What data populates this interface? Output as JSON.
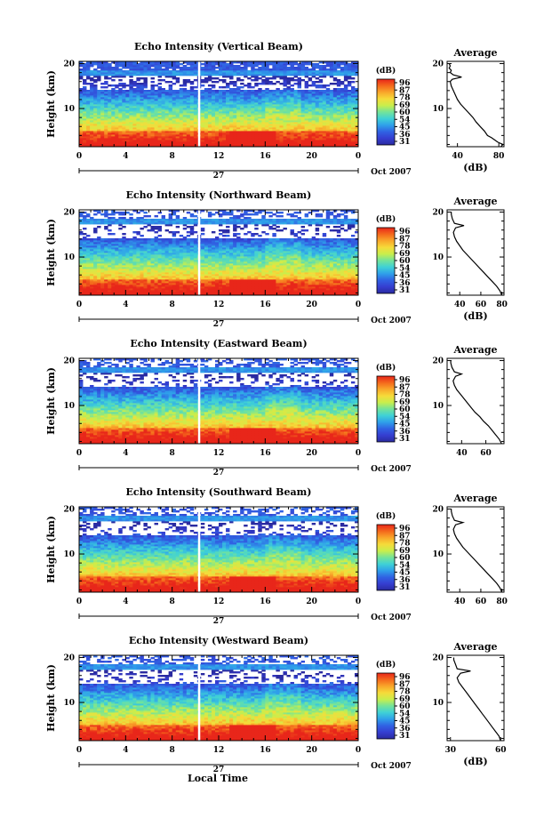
{
  "figure": {
    "xlabel": "Local Time",
    "month_label": "Oct 2007",
    "day_label": "27",
    "colorbar_unit": "(dB)",
    "colorbar_ticks": [
      "96",
      "87",
      "78",
      "69",
      "60",
      "54",
      "45",
      "36",
      "31"
    ],
    "colorbar_colors": [
      "#e8261a",
      "#f4681c",
      "#f9a72a",
      "#f6db3a",
      "#c9ee4c",
      "#73e39a",
      "#3fd1d6",
      "#2fa0ea",
      "#3062e3",
      "#353ed0",
      "#2a2aa0"
    ],
    "ylabel": "Height (km)",
    "avg_title": "Average",
    "avg_unit": "(dB)"
  },
  "chart_data": [
    {
      "type": "heatmap",
      "title": "Echo Intensity (Vertical Beam)",
      "xlabel": "Local Time",
      "ylabel": "Height (km)",
      "x_ticks": [
        "0",
        "4",
        "8",
        "12",
        "16",
        "20",
        "0"
      ],
      "xlim": [
        0,
        24
      ],
      "y_ticks": [
        "20",
        "10"
      ],
      "ylim": [
        1.5,
        20.5
      ],
      "colorbar_ticks": [
        "96",
        "87",
        "78",
        "69",
        "60",
        "54",
        "45",
        "36",
        "31"
      ],
      "profile": {
        "title": "Average",
        "xlabel": "(dB)",
        "x_ticks": [
          "40",
          "80"
        ],
        "xlim": [
          30,
          85
        ],
        "points": [
          [
            82,
            1.5
          ],
          [
            84,
            2
          ],
          [
            79,
            2.5
          ],
          [
            76,
            3
          ],
          [
            73,
            3.5
          ],
          [
            69,
            4
          ],
          [
            66,
            5
          ],
          [
            62,
            6
          ],
          [
            58,
            7
          ],
          [
            55,
            8
          ],
          [
            51,
            9
          ],
          [
            47,
            10
          ],
          [
            43,
            11
          ],
          [
            40,
            12
          ],
          [
            38,
            13
          ],
          [
            36,
            14
          ],
          [
            34,
            15
          ],
          [
            33,
            16
          ],
          [
            35,
            16.5
          ],
          [
            44,
            17
          ],
          [
            36,
            17.5
          ],
          [
            33,
            18
          ],
          [
            34,
            18.5
          ],
          [
            32,
            19
          ],
          [
            33,
            19.5
          ],
          [
            32,
            20
          ]
        ]
      }
    },
    {
      "type": "heatmap",
      "title": "Echo Intensity (Northward Beam)",
      "xlabel": "",
      "ylabel": "Height (km)",
      "x_ticks": [
        "0",
        "4",
        "8",
        "12",
        "16",
        "20",
        "0"
      ],
      "xlim": [
        0,
        24
      ],
      "y_ticks": [
        "20",
        "10"
      ],
      "ylim": [
        1.5,
        20.5
      ],
      "colorbar_ticks": [
        "96",
        "87",
        "78",
        "69",
        "60",
        "54",
        "45",
        "36",
        "31"
      ],
      "profile": {
        "title": "Average",
        "xlabel": "(dB)",
        "x_ticks": [
          "40",
          "60",
          "80"
        ],
        "xlim": [
          28,
          82
        ],
        "points": [
          [
            80,
            1.5
          ],
          [
            78,
            2.5
          ],
          [
            75,
            3.5
          ],
          [
            71,
            4.5
          ],
          [
            67,
            5.5
          ],
          [
            63,
            6.5
          ],
          [
            59,
            7.5
          ],
          [
            55,
            8.5
          ],
          [
            51,
            9.5
          ],
          [
            47,
            10.5
          ],
          [
            43,
            11.5
          ],
          [
            40,
            12.5
          ],
          [
            37,
            13.5
          ],
          [
            35,
            14.5
          ],
          [
            34,
            15.5
          ],
          [
            36,
            16.5
          ],
          [
            44,
            17
          ],
          [
            35,
            17.5
          ],
          [
            33,
            18.5
          ],
          [
            32,
            19.5
          ],
          [
            32,
            20
          ]
        ]
      }
    },
    {
      "type": "heatmap",
      "title": "Echo Intensity (Eastward Beam)",
      "xlabel": "",
      "ylabel": "Height (km)",
      "x_ticks": [
        "0",
        "4",
        "8",
        "12",
        "16",
        "20",
        "0"
      ],
      "xlim": [
        0,
        24
      ],
      "y_ticks": [
        "20",
        "10"
      ],
      "ylim": [
        1.5,
        20.5
      ],
      "colorbar_ticks": [
        "96",
        "87",
        "78",
        "69",
        "60",
        "54",
        "45",
        "36",
        "31"
      ],
      "profile": {
        "title": "Average",
        "xlabel": "",
        "x_ticks": [
          "40",
          "60"
        ],
        "xlim": [
          28,
          75
        ],
        "points": [
          [
            73,
            1.5
          ],
          [
            71,
            2.5
          ],
          [
            68,
            3.5
          ],
          [
            65,
            4.5
          ],
          [
            62,
            5.5
          ],
          [
            58,
            6.5
          ],
          [
            55,
            7.5
          ],
          [
            51,
            8.5
          ],
          [
            48,
            9.5
          ],
          [
            45,
            10.5
          ],
          [
            42,
            11.5
          ],
          [
            39,
            12.5
          ],
          [
            36,
            13.5
          ],
          [
            34,
            14.5
          ],
          [
            33,
            15.5
          ],
          [
            35,
            16.5
          ],
          [
            40,
            17
          ],
          [
            34,
            17.5
          ],
          [
            32,
            18.5
          ],
          [
            31,
            19.5
          ],
          [
            31,
            20
          ]
        ]
      }
    },
    {
      "type": "heatmap",
      "title": "Echo Intensity (Southward Beam)",
      "xlabel": "",
      "ylabel": "Height (km)",
      "x_ticks": [
        "0",
        "4",
        "8",
        "12",
        "16",
        "20",
        "0"
      ],
      "xlim": [
        0,
        24
      ],
      "y_ticks": [
        "20",
        "10"
      ],
      "ylim": [
        1.5,
        20.5
      ],
      "colorbar_ticks": [
        "96",
        "87",
        "78",
        "69",
        "60",
        "54",
        "45",
        "36",
        "31"
      ],
      "profile": {
        "title": "Average",
        "xlabel": "",
        "x_ticks": [
          "40",
          "60",
          "80"
        ],
        "xlim": [
          28,
          82
        ],
        "points": [
          [
            80,
            1.5
          ],
          [
            78,
            2.5
          ],
          [
            75,
            3.5
          ],
          [
            71,
            4.5
          ],
          [
            67,
            5.5
          ],
          [
            63,
            6.5
          ],
          [
            59,
            7.5
          ],
          [
            55,
            8.5
          ],
          [
            51,
            9.5
          ],
          [
            47,
            10.5
          ],
          [
            43,
            11.5
          ],
          [
            40,
            12.5
          ],
          [
            37,
            13.5
          ],
          [
            35,
            14.5
          ],
          [
            34,
            15.5
          ],
          [
            36,
            16.5
          ],
          [
            43,
            17
          ],
          [
            35,
            17.5
          ],
          [
            33,
            18.5
          ],
          [
            32,
            19.5
          ],
          [
            32,
            20
          ]
        ]
      }
    },
    {
      "type": "heatmap",
      "title": "Echo Intensity (Westward Beam)",
      "xlabel": "Local Time",
      "ylabel": "Height (km)",
      "x_ticks": [
        "0",
        "4",
        "8",
        "12",
        "16",
        "20",
        "0"
      ],
      "xlim": [
        0,
        24
      ],
      "y_ticks": [
        "20",
        "10"
      ],
      "ylim": [
        1.5,
        20.5
      ],
      "colorbar_ticks": [
        "96",
        "87",
        "78",
        "69",
        "60",
        "54",
        "45",
        "36",
        "31"
      ],
      "profile": {
        "title": "Average",
        "xlabel": "(dB)",
        "x_ticks": [
          "30",
          "60"
        ],
        "xlim": [
          28,
          62
        ],
        "points": [
          [
            60,
            1.5
          ],
          [
            59,
            2.5
          ],
          [
            57,
            3.5
          ],
          [
            55,
            4.5
          ],
          [
            53,
            5.5
          ],
          [
            51,
            6.5
          ],
          [
            49,
            7.5
          ],
          [
            47,
            8.5
          ],
          [
            45,
            9.5
          ],
          [
            43,
            10.5
          ],
          [
            41,
            11.5
          ],
          [
            39,
            12.5
          ],
          [
            37,
            13.5
          ],
          [
            35,
            14.5
          ],
          [
            34,
            15.5
          ],
          [
            36,
            16.5
          ],
          [
            42,
            17
          ],
          [
            34,
            17.5
          ],
          [
            33,
            18.5
          ],
          [
            32,
            19.5
          ],
          [
            32,
            20
          ]
        ]
      }
    }
  ]
}
